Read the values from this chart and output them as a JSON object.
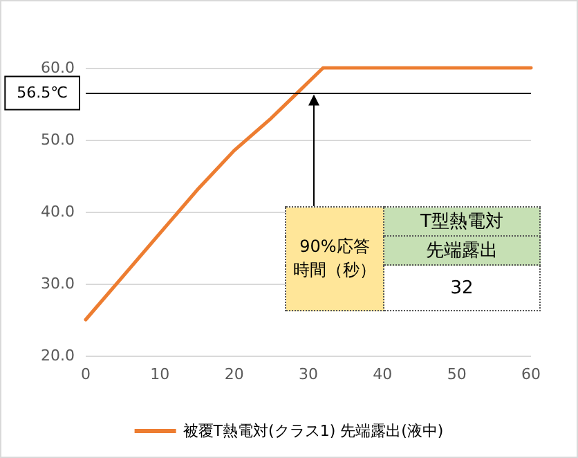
{
  "chart_data": {
    "type": "line",
    "x": [
      0,
      5,
      10,
      15,
      20,
      25,
      28,
      30,
      32,
      60
    ],
    "series": [
      {
        "name": "被覆T熱電対(クラス1) 先端露出(液中)",
        "color": "#ed7d31",
        "values": [
          25,
          31,
          37,
          43,
          48.5,
          53,
          56,
          58,
          60,
          60
        ]
      }
    ],
    "xlim": [
      0,
      60
    ],
    "xticks": [
      0,
      10,
      20,
      30,
      40,
      50,
      60
    ],
    "ylim": [
      20,
      60
    ],
    "yticks": [
      {
        "value": 20,
        "label": "20.0"
      },
      {
        "value": 30,
        "label": "30.0"
      },
      {
        "value": 40,
        "label": "40.0"
      },
      {
        "value": 50,
        "label": "50.0"
      },
      {
        "value": 60,
        "label": "60.0"
      }
    ],
    "ref_lines": [
      {
        "axis": "y",
        "value": 56.5,
        "label": "56.5℃",
        "color": "#000000"
      }
    ],
    "annotations": [
      "90%応答時間（秒）",
      "T型熱電対",
      "先端露出",
      "32"
    ],
    "grid": "y",
    "legend": "bottom",
    "marker": "none",
    "line_style": "solid"
  }
}
